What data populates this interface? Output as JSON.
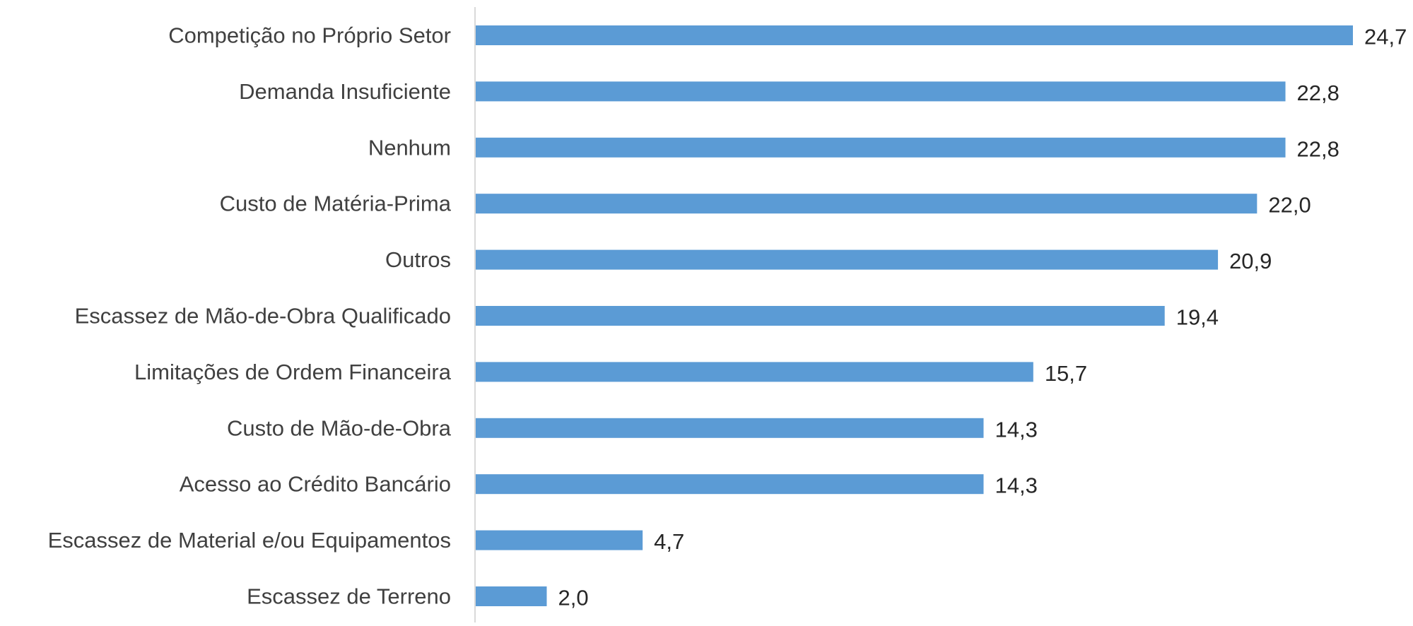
{
  "chart_data": {
    "type": "bar",
    "orientation": "horizontal",
    "categories": [
      "Competição no Próprio Setor",
      "Demanda Insuficiente",
      "Nenhum",
      "Custo de Matéria-Prima",
      "Outros",
      "Escassez de Mão-de-Obra Qualificado",
      "Limitações de Ordem Financeira",
      "Custo de Mão-de-Obra",
      "Acesso ao Crédito Bancário",
      "Escassez de Material e/ou Equipamentos",
      "Escassez de Terreno"
    ],
    "values": [
      24.7,
      22.8,
      22.8,
      22.0,
      20.9,
      19.4,
      15.7,
      14.3,
      14.3,
      4.7,
      2.0
    ],
    "value_labels": [
      "24,7",
      "22,8",
      "22,8",
      "22,0",
      "20,9",
      "19,4",
      "15,7",
      "14,3",
      "14,3",
      "4,7",
      "2,0"
    ],
    "xlim": [
      0,
      24.7
    ],
    "grid": false,
    "legend": "none",
    "bar_color": "#5B9BD5",
    "axis_color": "#D9D9D9",
    "label_color": "#404040"
  }
}
